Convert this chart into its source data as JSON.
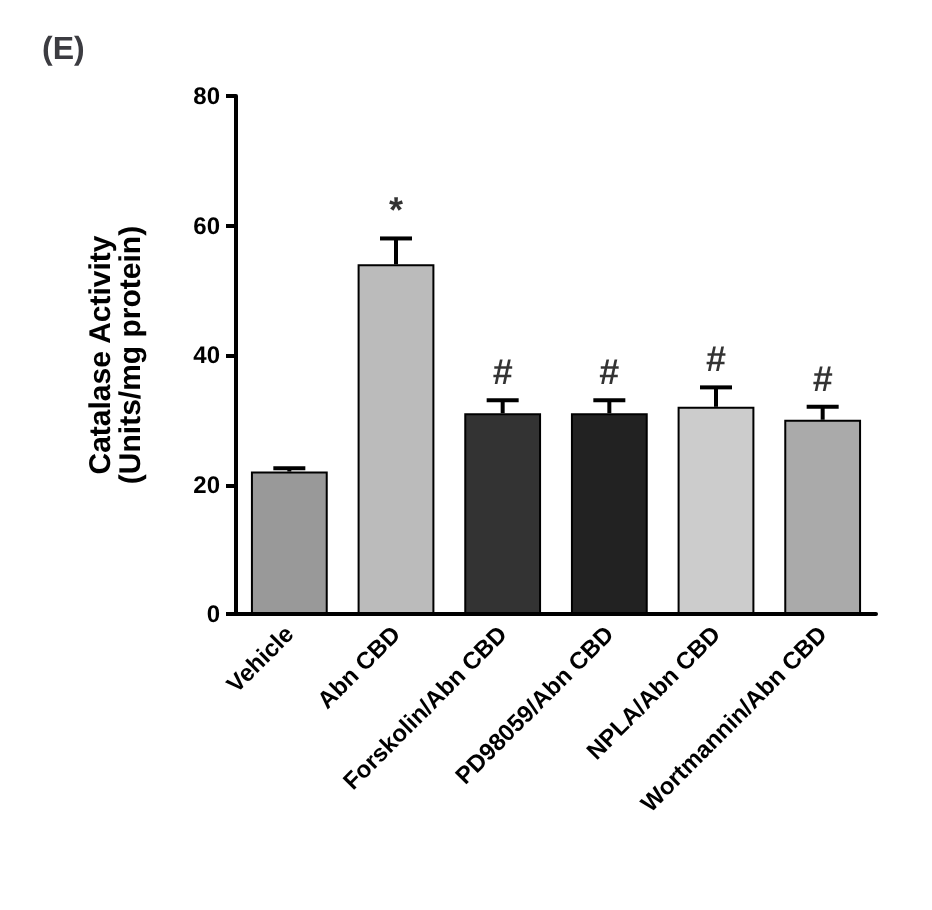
{
  "chart_data": {
    "type": "bar",
    "title": "(E)",
    "ylabel": "Catalase Activity\n(Units/mg protein)",
    "categories": [
      "Vehicle",
      "Abn CBD",
      "Forskolin/Abn CBD",
      "PD98059/Abn CBD",
      "NPLA/Abn CBD",
      "Wortmannin/Abn CBD"
    ],
    "values": [
      22,
      54,
      31,
      31,
      32,
      30
    ],
    "errors": [
      0.5,
      4,
      2,
      2,
      3,
      2
    ],
    "colors": [
      "#999999",
      "#bbbbbb",
      "#333333",
      "#222222",
      "#cccccc",
      "#aaaaaa"
    ],
    "ylim": [
      0,
      80
    ],
    "yticks": [
      0,
      20,
      40,
      60,
      80
    ],
    "grid": false,
    "annotations": [
      {
        "text": "*",
        "x": "Abn CBD",
        "y": 58
      },
      {
        "text": "#",
        "x": "Forskolin/Abn CBD",
        "y": 33
      },
      {
        "text": "#",
        "x": "PD98059/Abn CBD",
        "y": 33
      },
      {
        "text": "#",
        "x": "NPLA/Abn CBD",
        "y": 35
      },
      {
        "text": "#",
        "x": "Wortmannin/Abn CBD",
        "y": 32
      }
    ]
  }
}
